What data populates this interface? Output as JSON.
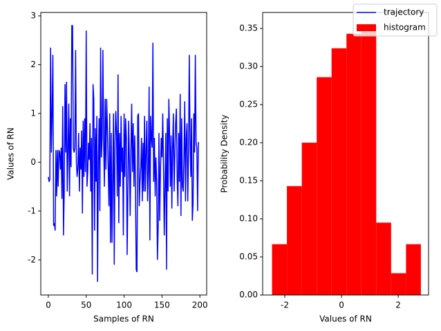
{
  "chart_data": [
    {
      "type": "line",
      "xlabel": "Samples of RN",
      "ylabel": "Values of RN",
      "x": [
        0,
        1,
        2,
        3,
        4,
        5,
        6,
        7,
        8,
        9,
        10,
        11,
        12,
        13,
        14,
        15,
        16,
        17,
        18,
        19,
        20,
        21,
        22,
        23,
        24,
        25,
        26,
        27,
        28,
        29,
        30,
        31,
        32,
        33,
        34,
        35,
        36,
        37,
        38,
        39,
        40,
        41,
        42,
        43,
        44,
        45,
        46,
        47,
        48,
        49,
        50,
        51,
        52,
        53,
        54,
        55,
        56,
        57,
        58,
        59,
        60,
        61,
        62,
        63,
        64,
        65,
        66,
        67,
        68,
        69,
        70,
        71,
        72,
        73,
        74,
        75,
        76,
        77,
        78,
        79,
        80,
        81,
        82,
        83,
        84,
        85,
        86,
        87,
        88,
        89,
        90,
        91,
        92,
        93,
        94,
        95,
        96,
        97,
        98,
        99,
        100,
        101,
        102,
        103,
        104,
        105,
        106,
        107,
        108,
        109,
        110,
        111,
        112,
        113,
        114,
        115,
        116,
        117,
        118,
        119,
        120,
        121,
        122,
        123,
        124,
        125,
        126,
        127,
        128,
        129,
        130,
        131,
        132,
        133,
        134,
        135,
        136,
        137,
        138,
        139,
        140,
        141,
        142,
        143,
        144,
        145,
        146,
        147,
        148,
        149,
        150,
        151,
        152,
        153,
        154,
        155,
        156,
        157,
        158,
        159,
        160,
        161,
        162,
        163,
        164,
        165,
        166,
        167,
        168,
        169,
        170,
        171,
        172,
        173,
        174,
        175,
        176,
        177,
        178,
        179,
        180,
        181,
        182,
        183,
        184,
        185,
        186,
        187,
        188,
        189,
        190,
        191,
        192,
        193,
        194,
        195,
        196,
        197,
        198,
        199
      ],
      "series": [
        {
          "name": "trajectory",
          "color": "#0000ff",
          "values": [
            -0.3,
            -0.4,
            -0.35,
            2.35,
            0.2,
            1.0,
            2.2,
            -1.3,
            -1.25,
            -1.4,
            0.25,
            -0.7,
            0.25,
            -0.5,
            0.25,
            0.2,
            -0.15,
            0.3,
            -0.75,
            1.15,
            -1.5,
            -0.6,
            1.6,
            0.2,
            1.65,
            -0.6,
            0.25,
            1.2,
            -0.7,
            0.9,
            -0.1,
            2.8,
            2.8,
            0.3,
            0.2,
            0.3,
            2.3,
            0.0,
            -0.3,
            -0.1,
            0.6,
            -0.6,
            0.3,
            -0.15,
            0.65,
            -1.05,
            0.85,
            -0.3,
            0.9,
            -0.2,
            2.7,
            -0.5,
            -0.2,
            0.4,
            0.05,
            0.8,
            -0.6,
            0.5,
            -2.3,
            1.6,
            1.3,
            -1.4,
            0.7,
            -0.4,
            0.95,
            -2.45,
            0.0,
            0.9,
            -1.0,
            2.35,
            0.1,
            0.5,
            2.3,
            0.4,
            -0.5,
            1.3,
            -0.15,
            1.3,
            0.7,
            -0.1,
            -0.9,
            1.0,
            -1.65,
            0.6,
            -1.65,
            -0.35,
            1.0,
            -2.1,
            0.4,
            1.05,
            0.6,
            -0.7,
            1.8,
            -1.25,
            0.6,
            -0.5,
            0.95,
            -0.2,
            0.3,
            -1.5,
            1.0,
            -0.3,
            0.9,
            0.5,
            -1.9,
            -0.6,
            0.85,
            0.0,
            -1.1,
            0.25,
            1.2,
            -0.2,
            0.8,
            -0.5,
            0.55,
            -0.45,
            -2.2,
            -2.25,
            0.95,
            1.0,
            -0.9,
            -0.4,
            -0.1,
            0.5,
            -0.8,
            0.4,
            -0.6,
            0.95,
            -0.6,
            0.2,
            0.85,
            -0.8,
            -0.2,
            1.55,
            -1.6,
            0.95,
            0.5,
            0.3,
            2.45,
            -0.4,
            0.5,
            -0.7,
            0.1,
            -0.4,
            -2.0,
            -1.3,
            0.6,
            -1.2,
            -0.15,
            0.5,
            0.1,
            1.0,
            -0.1,
            -1.5,
            -0.5,
            0.6,
            -2.2,
            0.9,
            -0.6,
            1.3,
            0.6,
            -0.5,
            0.55,
            -0.95,
            0.3,
            1.0,
            -0.6,
            0.2,
            0.8,
            1.1,
            -0.3,
            -0.9,
            0.6,
            -0.4,
            1.4,
            -1.1,
            0.9,
            -0.5,
            -0.6,
            0.1,
            1.25,
            -0.8,
            0.5,
            0.8,
            -0.8,
            0.2,
            2.2,
            0.5,
            -0.3,
            0.9,
            -1.2,
            -0.85,
            1.0,
            0.2,
            2.2,
            0.4,
            0.3,
            -1.0,
            0.4,
            0.4
          ]
        }
      ],
      "xlim": [
        -9.95,
        208.95
      ],
      "xticks": [
        0,
        50,
        100,
        150,
        200
      ],
      "ylim": [
        -2.72,
        3.07
      ],
      "yticks": [
        -2,
        -1,
        0,
        1,
        2,
        3
      ]
    },
    {
      "type": "histogram",
      "xlabel": "Values of RN",
      "ylabel": "Probability Density",
      "bins": [
        -2.45,
        -1.925,
        -1.4,
        -0.875,
        -0.35,
        0.175,
        0.7,
        1.225,
        1.75,
        2.275,
        2.8
      ],
      "series": [
        {
          "name": "histogram",
          "color": "#ff0000",
          "values": [
            0.0667,
            0.143,
            0.2,
            0.286,
            0.324,
            0.343,
            0.352,
            0.095,
            0.0286,
            0.0667
          ]
        }
      ],
      "xlim": [
        -2.78,
        3.07
      ],
      "xticks": [
        -2,
        0,
        2
      ],
      "ylim": [
        0,
        0.371
      ],
      "yticks": [
        {
          "value": 0,
          "label": "0.00"
        },
        {
          "value": 0.05,
          "label": "0.05"
        },
        {
          "value": 0.1,
          "label": "0.10"
        },
        {
          "value": 0.15,
          "label": "0.15"
        },
        {
          "value": 0.2,
          "label": "0.20"
        },
        {
          "value": 0.25,
          "label": "0.25"
        },
        {
          "value": 0.3,
          "label": "0.30"
        },
        {
          "value": 0.35,
          "label": "0.35"
        }
      ]
    }
  ]
}
